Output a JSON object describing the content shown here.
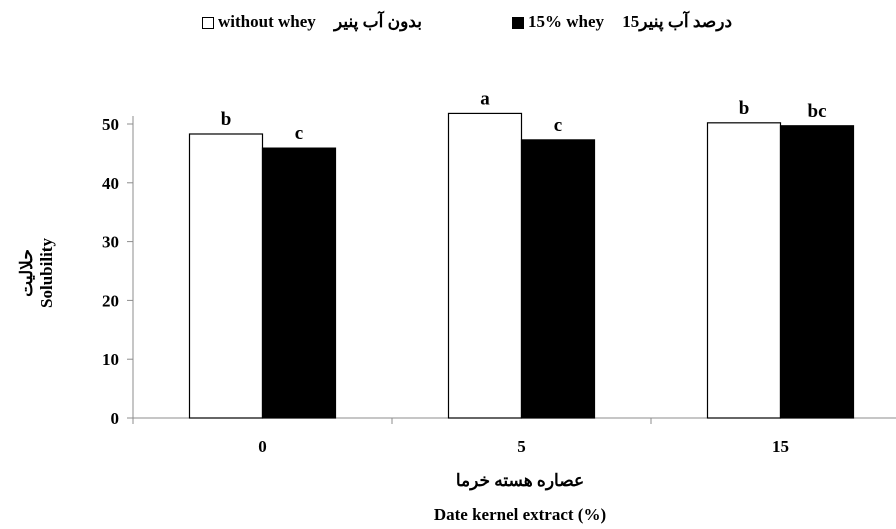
{
  "chart_data": {
    "type": "bar",
    "categories": [
      "0",
      "5",
      "15"
    ],
    "series": [
      {
        "name": "without whey",
        "name_fa": "بدون آب پنیر",
        "fill": "#ffffff",
        "values": [
          48.3,
          51.8,
          50.2
        ],
        "labels": [
          "b",
          "a",
          "b"
        ]
      },
      {
        "name": "15% whey",
        "name_fa": "درصد آب پنیر15",
        "fill": "#000000",
        "values": [
          45.9,
          47.3,
          49.7
        ],
        "labels": [
          "c",
          "c",
          "bc"
        ]
      }
    ],
    "ylim": [
      0,
      50
    ],
    "yticks": [
      "0",
      "10",
      "20",
      "30",
      "40",
      "50"
    ],
    "xlabel_fa": "عصاره هسته خرما",
    "xlabel": "Date kernel extract (%)",
    "ylabel_fa": "حلالیت",
    "ylabel": "Solubility",
    "legend_position": "top"
  }
}
